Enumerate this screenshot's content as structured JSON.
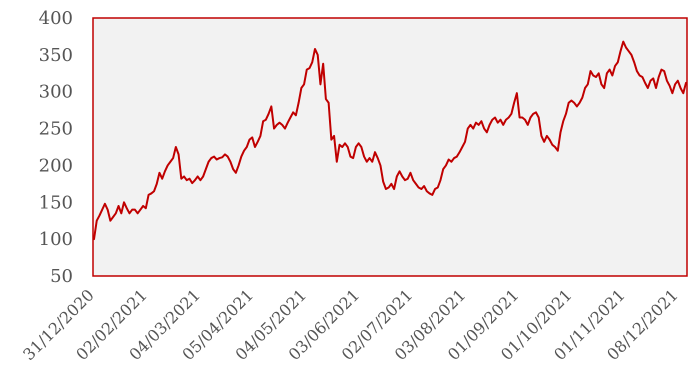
{
  "chart_data": {
    "type": "line",
    "title": "",
    "xlabel": "",
    "ylabel": "",
    "ylim": [
      50,
      400
    ],
    "yticks": [
      50,
      100,
      150,
      200,
      250,
      300,
      350,
      400
    ],
    "xtick_labels": [
      "31/12/2020",
      "02/02/2021",
      "04/03/2021",
      "05/04/2021",
      "04/05/2021",
      "03/06/2021",
      "02/07/2021",
      "03/08/2021",
      "01/09/2021",
      "01/10/2021",
      "01/11/2021",
      "08/12/2021"
    ],
    "grid": false,
    "legend": "none",
    "colors": {
      "line": "#c00000",
      "plot_background": "#f2f2f2",
      "frame": "#c00000"
    },
    "series": [
      {
        "values": [
          100,
          125,
          132,
          140,
          148,
          140,
          125,
          130,
          135,
          145,
          135,
          150,
          142,
          135,
          140,
          140,
          135,
          140,
          145,
          142,
          160,
          162,
          165,
          175,
          190,
          182,
          192,
          200,
          205,
          210,
          225,
          215,
          182,
          185,
          180,
          182,
          176,
          180,
          185,
          180,
          185,
          195,
          205,
          210,
          212,
          208,
          210,
          211,
          215,
          212,
          205,
          195,
          190,
          200,
          212,
          220,
          225,
          235,
          238,
          225,
          232,
          240,
          260,
          262,
          270,
          280,
          250,
          255,
          258,
          255,
          250,
          258,
          265,
          272,
          268,
          285,
          305,
          310,
          330,
          332,
          340,
          358,
          350,
          310,
          338,
          290,
          285,
          235,
          240,
          205,
          228,
          225,
          230,
          225,
          212,
          210,
          225,
          230,
          225,
          212,
          205,
          210,
          205,
          218,
          210,
          200,
          178,
          168,
          170,
          175,
          168,
          185,
          192,
          185,
          180,
          182,
          190,
          180,
          175,
          170,
          168,
          172,
          165,
          162,
          160,
          168,
          170,
          180,
          195,
          200,
          208,
          205,
          210,
          212,
          218,
          225,
          232,
          250,
          255,
          250,
          258,
          255,
          260,
          250,
          245,
          255,
          262,
          265,
          258,
          262,
          255,
          262,
          265,
          270,
          285,
          298,
          265,
          265,
          262,
          255,
          265,
          270,
          272,
          265,
          240,
          232,
          240,
          235,
          228,
          225,
          220,
          245,
          260,
          270,
          285,
          288,
          285,
          280,
          285,
          292,
          305,
          310,
          328,
          322,
          320,
          325,
          310,
          305,
          325,
          330,
          322,
          335,
          340,
          355,
          368,
          360,
          355,
          350,
          340,
          328,
          322,
          320,
          312,
          305,
          315,
          318,
          305,
          320,
          330,
          328,
          315,
          308,
          298,
          310,
          315,
          305,
          298,
          312
        ]
      }
    ]
  }
}
